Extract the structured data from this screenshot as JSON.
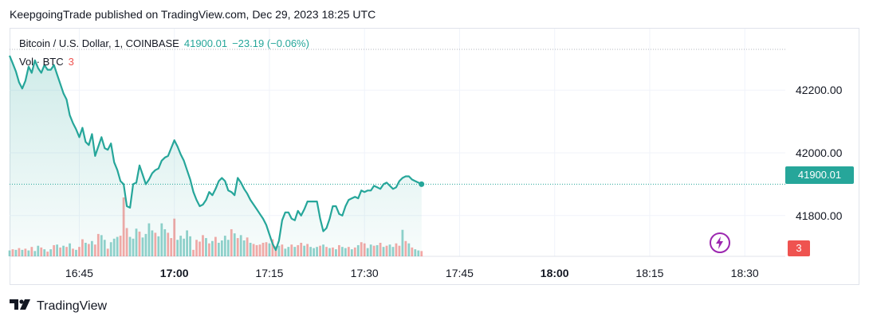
{
  "header": {
    "publish_line": "KeepgoingTrade published on TradingView.com, Dec 29, 2023 18:25 UTC"
  },
  "legend": {
    "symbol": "Bitcoin / U.S. Dollar, 1, COINBASE",
    "last": "41900.01",
    "change": "−23.19 (−0.06%)",
    "volume_label": "Vol · BTC",
    "volume_value": "3"
  },
  "price_axis": {
    "tick_labels": [
      "42200.00",
      "42000.00",
      "41800.00"
    ],
    "last_price_label": "41900.01",
    "last_volume_label": "3"
  },
  "time_axis": {
    "tick_labels": [
      "16:45",
      "17:00",
      "17:15",
      "17:30",
      "17:45",
      "18:00",
      "18:15",
      "18:30"
    ],
    "bold_ticks": [
      "17:00",
      "18:00"
    ]
  },
  "footer": {
    "brand": "TradingView"
  },
  "colors": {
    "line": "#26a69a",
    "up_volume": "#26a69a",
    "down_volume": "#ef5350",
    "icon_accent": "#9c27b0"
  },
  "icons": {
    "logo": "tradingview-logo-icon",
    "alert": "lightning-icon"
  },
  "chart_data": {
    "type": "area",
    "x_unit": "minutes since 16:34 UTC",
    "price_range": [
      41670,
      42330
    ],
    "time_ticks": [
      {
        "label": "16:45",
        "minute": 11
      },
      {
        "label": "17:00",
        "minute": 26
      },
      {
        "label": "17:15",
        "minute": 41
      },
      {
        "label": "17:30",
        "minute": 56
      },
      {
        "label": "17:45",
        "minute": 71
      },
      {
        "label": "18:00",
        "minute": 86
      },
      {
        "label": "18:15",
        "minute": 101
      },
      {
        "label": "18:30",
        "minute": 116
      }
    ],
    "price_ticks": [
      42200,
      42000,
      41800
    ],
    "last_price": 41900.01,
    "price_series": {
      "name": "Bitcoin / U.S. Dollar",
      "minute_start": 0,
      "step_minutes": 0.5,
      "values": [
        42310,
        42285,
        42260,
        42225,
        42205,
        42230,
        42275,
        42255,
        42295,
        42270,
        42255,
        42280,
        42265,
        42265,
        42280,
        42250,
        42220,
        42190,
        42170,
        42120,
        42095,
        42075,
        42050,
        42080,
        42035,
        42025,
        42060,
        41990,
        42020,
        42050,
        42015,
        42010,
        42030,
        41970,
        41945,
        41910,
        41900,
        41830,
        41825,
        41900,
        41905,
        41960,
        41930,
        41900,
        41915,
        41935,
        41945,
        41950,
        41975,
        41985,
        41990,
        42015,
        42040,
        42020,
        41995,
        41975,
        41945,
        41915,
        41875,
        41850,
        41830,
        41835,
        41850,
        41875,
        41865,
        41885,
        41910,
        41920,
        41910,
        41880,
        41875,
        41865,
        41920,
        41905,
        41885,
        41870,
        41850,
        41835,
        41820,
        41805,
        41790,
        41770,
        41740,
        41710,
        41690,
        41720,
        41785,
        41810,
        41810,
        41790,
        41785,
        41815,
        41800,
        41820,
        41845,
        41845,
        41845,
        41845,
        41790,
        41750,
        41760,
        41790,
        41830,
        41830,
        41805,
        41800,
        41830,
        41850,
        41855,
        41860,
        41855,
        41880,
        41875,
        41880,
        41880,
        41895,
        41890,
        41885,
        41900,
        41905,
        41895,
        41885,
        41890,
        41910,
        41920,
        41925,
        41925,
        41915,
        41910,
        41905,
        41900
      ]
    },
    "volume_series": {
      "name": "Vol · BTC",
      "minute_start": 0,
      "step_minutes": 0.5,
      "values": [
        1,
        1.2,
        1.1,
        1.4,
        1.1,
        1.3,
        1.0,
        1.6,
        0.9,
        1.8,
        1.5,
        1.2,
        0.8,
        1.2,
        1.9,
        2.0,
        1.5,
        1.8,
        1.6,
        2.2,
        1.3,
        1.1,
        1.6,
        2.9,
        2.3,
        2.1,
        2.6,
        2.0,
        3.8,
        3.6,
        2.8,
        1.3,
        2.4,
        3.0,
        3.3,
        3.5,
        10.0,
        4.8,
        3.3,
        3.0,
        4.7,
        4.2,
        3.2,
        3.8,
        5.6,
        4.4,
        4.0,
        3.4,
        5.6,
        4.6,
        4.0,
        3.1,
        6.4,
        2.8,
        3.5,
        3.0,
        4.4,
        3.4,
        1.1,
        2.8,
        2.5,
        3.6,
        3.1,
        2.2,
        2.6,
        3.3,
        2.3,
        2.7,
        3.5,
        2.8,
        4.6,
        3.9,
        3.1,
        3.6,
        2.7,
        3.2,
        2.3,
        2.1,
        1.9,
        2.0,
        2.3,
        2.4,
        2.2,
        2.9,
        1.7,
        1.8,
        2.0,
        1.3,
        1.6,
        2.0,
        1.6,
        1.9,
        2.3,
        1.8,
        2.1,
        1.6,
        1.4,
        1.6,
        1.8,
        2.0,
        1.6,
        1.4,
        1.5,
        1.2,
        1.9,
        1.6,
        1.4,
        1.6,
        1.2,
        1.5,
        1.9,
        2.4,
        2.2,
        1.4,
        2.0,
        1.8,
        1.9,
        2.3,
        1.6,
        1.8,
        2.0,
        1.6,
        2.2,
        1.8,
        4.5,
        2.6,
        2.2,
        1.5,
        1.2,
        1.0,
        0.9
      ],
      "up": [
        1,
        0,
        1,
        0,
        1,
        0,
        1,
        0,
        1,
        1,
        0,
        1,
        0,
        1,
        0,
        1,
        0,
        1,
        0,
        1,
        0,
        1,
        0,
        0,
        1,
        0,
        1,
        0,
        0,
        1,
        1,
        0,
        1,
        1,
        1,
        0,
        0,
        0,
        1,
        1,
        1,
        0,
        1,
        1,
        1,
        1,
        0,
        1,
        1,
        1,
        0,
        0,
        0,
        1,
        1,
        1,
        1,
        1,
        0,
        0,
        0,
        0,
        1,
        0,
        1,
        0,
        1,
        1,
        1,
        1,
        0,
        1,
        0,
        1,
        1,
        0,
        1,
        0,
        0,
        0,
        0,
        0,
        1,
        0,
        0,
        1,
        0,
        1,
        1,
        0,
        1,
        0,
        0,
        1,
        0,
        1,
        1,
        1,
        0,
        1,
        0,
        1,
        0,
        1,
        0,
        1,
        1,
        0,
        1,
        0,
        1,
        0,
        0,
        1,
        1,
        0,
        1,
        0,
        1,
        0,
        1,
        1,
        0,
        0,
        1,
        0,
        1,
        0,
        1,
        1,
        0
      ]
    }
  }
}
